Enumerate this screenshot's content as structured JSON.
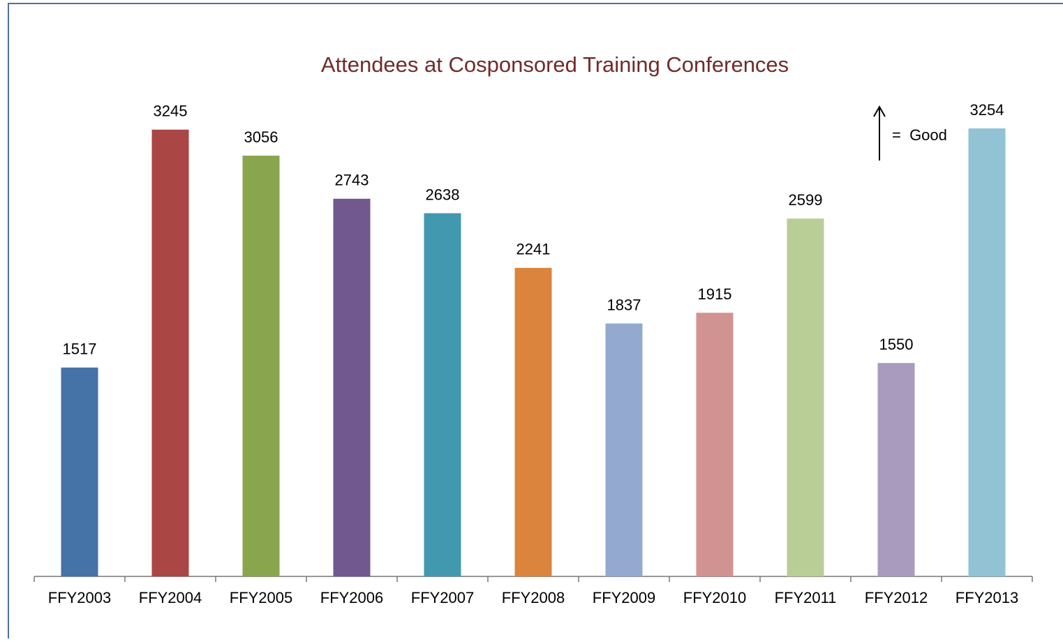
{
  "chart_data": {
    "type": "bar",
    "title": "Attendees at Cosponsored Training Conferences",
    "categories": [
      "FFY2003",
      "FFY2004",
      "FFY2005",
      "FFY2006",
      "FFY2007",
      "FFY2008",
      "FFY2009",
      "FFY2010",
      "FFY2011",
      "FFY2012",
      "FFY2013"
    ],
    "values": [
      1517,
      3245,
      3056,
      2743,
      2638,
      2241,
      1837,
      1915,
      2599,
      1550,
      3254
    ],
    "colors": [
      "#4572a7",
      "#aa4643",
      "#89a54e",
      "#71588f",
      "#4198af",
      "#db843d",
      "#93a9cf",
      "#d19392",
      "#b9cd96",
      "#a99bbd",
      "#92c3d5"
    ],
    "annotation": "=  Good"
  }
}
